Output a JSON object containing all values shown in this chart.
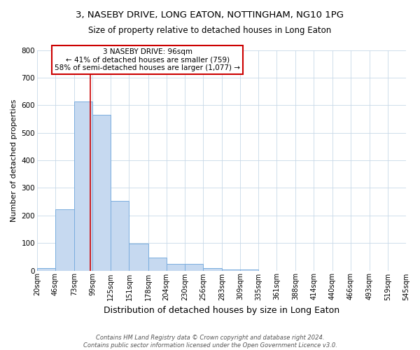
{
  "title": "3, NASEBY DRIVE, LONG EATON, NOTTINGHAM, NG10 1PG",
  "subtitle": "Size of property relative to detached houses in Long Eaton",
  "xlabel": "Distribution of detached houses by size in Long Eaton",
  "ylabel": "Number of detached properties",
  "bin_edges": [
    20,
    46,
    73,
    99,
    125,
    151,
    178,
    204,
    230,
    256,
    283,
    309,
    335,
    361,
    388,
    414,
    440,
    466,
    493,
    519,
    545
  ],
  "bin_labels": [
    "20sqm",
    "46sqm",
    "73sqm",
    "99sqm",
    "125sqm",
    "151sqm",
    "178sqm",
    "204sqm",
    "230sqm",
    "256sqm",
    "283sqm",
    "309sqm",
    "335sqm",
    "361sqm",
    "388sqm",
    "414sqm",
    "440sqm",
    "466sqm",
    "493sqm",
    "519sqm",
    "545sqm"
  ],
  "bar_heights": [
    10,
    223,
    614,
    566,
    252,
    97,
    48,
    23,
    23,
    10,
    5,
    5,
    0,
    0,
    0,
    0,
    0,
    0,
    0,
    0
  ],
  "bar_color": "#c6d9f0",
  "bar_edge_color": "#7aadde",
  "property_line_x": 96,
  "property_line_color": "#cc0000",
  "ylim": [
    0,
    800
  ],
  "yticks": [
    0,
    100,
    200,
    300,
    400,
    500,
    600,
    700,
    800
  ],
  "annotation_line1": "3 NASEBY DRIVE: 96sqm",
  "annotation_line2": "← 41% of detached houses are smaller (759)",
  "annotation_line3": "58% of semi-detached houses are larger (1,077) →",
  "annotation_box_color": "#ffffff",
  "annotation_box_edge_color": "#cc0000",
  "footer_text": "Contains HM Land Registry data © Crown copyright and database right 2024.\nContains public sector information licensed under the Open Government Licence v3.0.",
  "background_color": "#ffffff",
  "grid_color": "#c8d8e8"
}
